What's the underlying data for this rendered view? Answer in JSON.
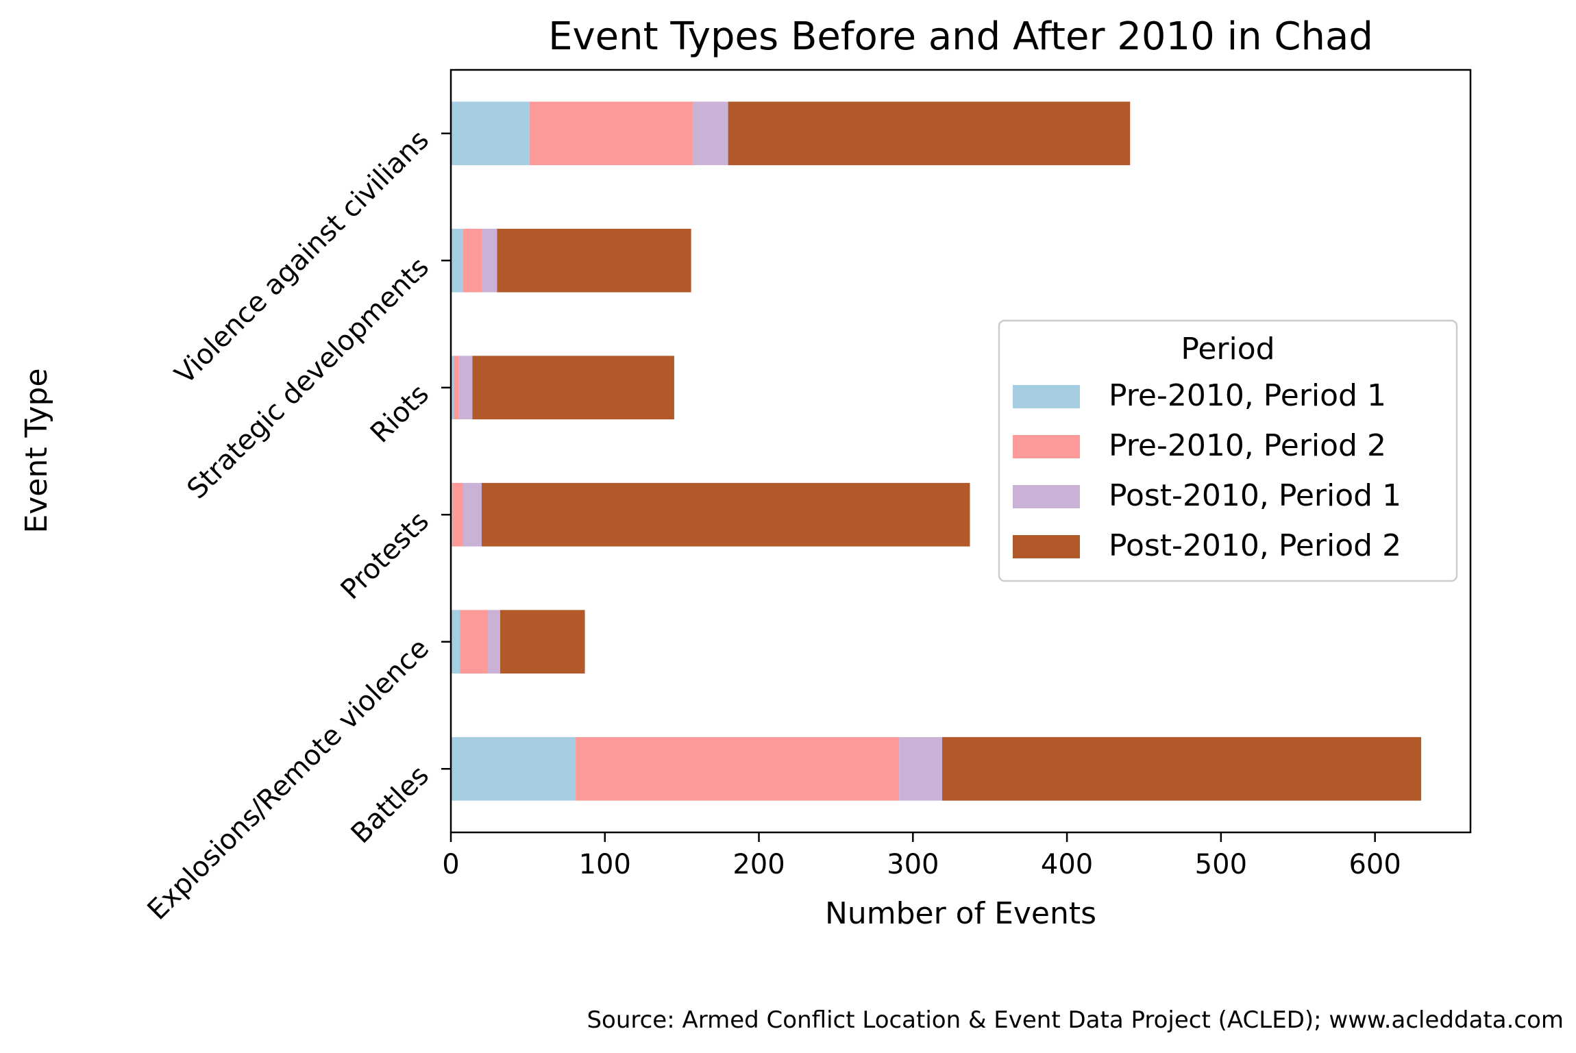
{
  "chart_data": {
    "type": "bar",
    "orientation": "horizontal",
    "stacked": true,
    "title": "Event Types Before and After 2010 in Chad",
    "xlabel": "Number of Events",
    "ylabel": "Event Type",
    "xlim": [
      0,
      662
    ],
    "xticks": [
      0,
      100,
      200,
      300,
      400,
      500,
      600
    ],
    "categories": [
      "Battles",
      "Explosions/Remote violence",
      "Protests",
      "Riots",
      "Strategic developments",
      "Violence against civilians"
    ],
    "series": [
      {
        "name": "Pre-2010, Period 1",
        "color": "#a6cee3",
        "values": [
          81,
          6,
          1,
          2,
          8,
          51
        ]
      },
      {
        "name": "Pre-2010, Period 2",
        "color": "#fb9a99",
        "values": [
          210,
          18,
          7,
          3,
          12,
          106
        ]
      },
      {
        "name": "Post-2010, Period 1",
        "color": "#cab2d6",
        "values": [
          28,
          8,
          12,
          9,
          10,
          23
        ]
      },
      {
        "name": "Post-2010, Period 2",
        "color": "#b15928",
        "values": [
          311,
          55,
          317,
          131,
          126,
          261
        ]
      }
    ],
    "legend": {
      "title": "Period",
      "placement": "center-right"
    },
    "grid": false
  },
  "footer": {
    "source": "Source: Armed Conflict Location & Event Data Project (ACLED); www.acleddata.com"
  }
}
